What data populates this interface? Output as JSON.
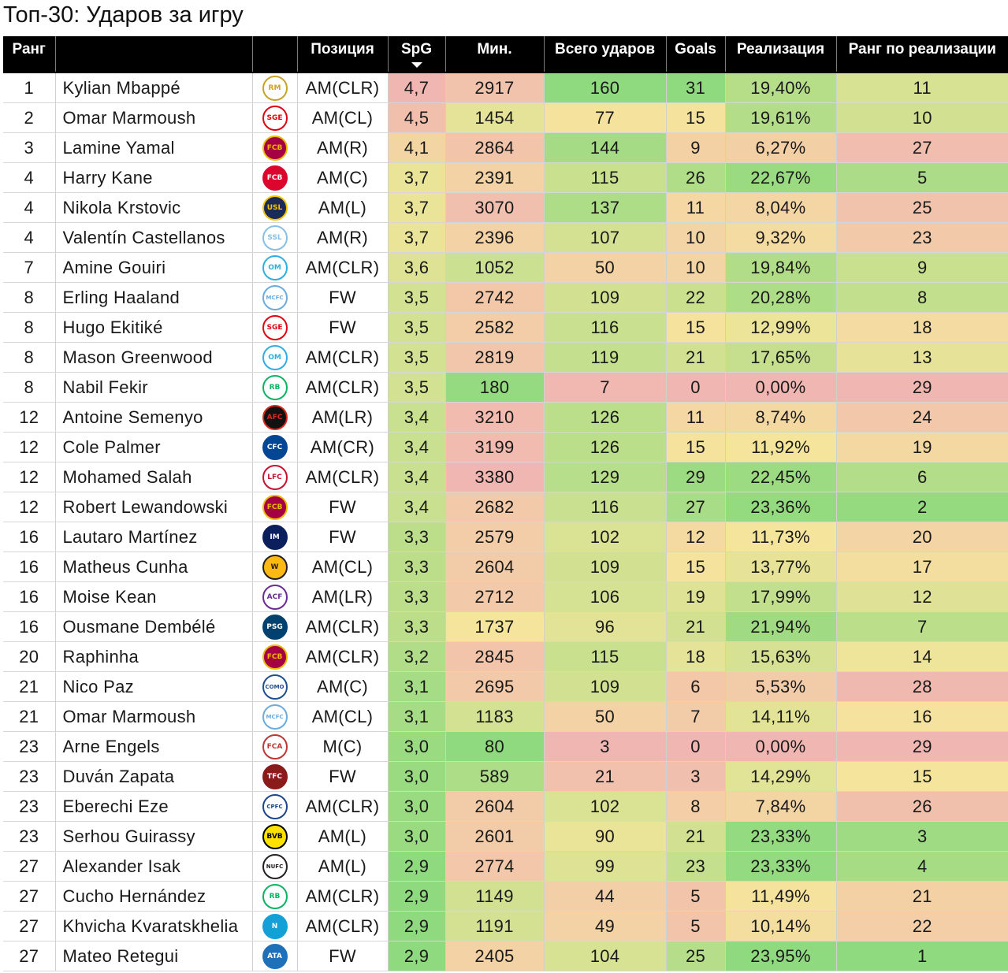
{
  "title": "Топ-30: Ударов за игру",
  "columns": {
    "rank": "Ранг",
    "player": "",
    "club": "",
    "position": "Позиция",
    "spg": "SpG",
    "minutes": "Мин.",
    "shots": "Всего ударов",
    "goals": "Goals",
    "conversion": "Реализация",
    "conversion_rank": "Ранг по реализации"
  },
  "sorted_column": "spg",
  "sort_direction": "descending",
  "rows": [
    {
      "rank": "1",
      "player": "Kylian Mbappé",
      "club_icon": "real-madrid-crest",
      "position": "AM(CLR)",
      "spg": "4,7",
      "minutes": "2917",
      "shots": "160",
      "goals": "31",
      "conversion": "19,40%",
      "conversion_rank": "11"
    },
    {
      "rank": "2",
      "player": "Omar Marmoush",
      "club_icon": "eintracht-frankfurt-crest",
      "position": "AM(CL)",
      "spg": "4,5",
      "minutes": "1454",
      "shots": "77",
      "goals": "15",
      "conversion": "19,61%",
      "conversion_rank": "10"
    },
    {
      "rank": "3",
      "player": "Lamine Yamal",
      "club_icon": "barcelona-crest",
      "position": "AM(R)",
      "spg": "4,1",
      "minutes": "2864",
      "shots": "144",
      "goals": "9",
      "conversion": "6,27%",
      "conversion_rank": "27"
    },
    {
      "rank": "4",
      "player": "Harry Kane",
      "club_icon": "bayern-munich-crest",
      "position": "AM(C)",
      "spg": "3,7",
      "minutes": "2391",
      "shots": "115",
      "goals": "26",
      "conversion": "22,67%",
      "conversion_rank": "5"
    },
    {
      "rank": "4",
      "player": "Nikola Krstovic",
      "club_icon": "lecce-crest",
      "position": "AM(L)",
      "spg": "3,7",
      "minutes": "3070",
      "shots": "137",
      "goals": "11",
      "conversion": "8,04%",
      "conversion_rank": "25"
    },
    {
      "rank": "4",
      "player": "Valentín Castellanos",
      "club_icon": "lazio-crest",
      "position": "AM(R)",
      "spg": "3,7",
      "minutes": "2396",
      "shots": "107",
      "goals": "10",
      "conversion": "9,32%",
      "conversion_rank": "23"
    },
    {
      "rank": "7",
      "player": "Amine Gouiri",
      "club_icon": "marseille-crest",
      "position": "AM(CLR)",
      "spg": "3,6",
      "minutes": "1052",
      "shots": "50",
      "goals": "10",
      "conversion": "19,84%",
      "conversion_rank": "9"
    },
    {
      "rank": "8",
      "player": "Erling Haaland",
      "club_icon": "manchester-city-crest",
      "position": "FW",
      "spg": "3,5",
      "minutes": "2742",
      "shots": "109",
      "goals": "22",
      "conversion": "20,28%",
      "conversion_rank": "8"
    },
    {
      "rank": "8",
      "player": "Hugo Ekitiké",
      "club_icon": "eintracht-frankfurt-crest",
      "position": "FW",
      "spg": "3,5",
      "minutes": "2582",
      "shots": "116",
      "goals": "15",
      "conversion": "12,99%",
      "conversion_rank": "18"
    },
    {
      "rank": "8",
      "player": "Mason Greenwood",
      "club_icon": "marseille-crest",
      "position": "AM(CLR)",
      "spg": "3,5",
      "minutes": "2819",
      "shots": "119",
      "goals": "21",
      "conversion": "17,65%",
      "conversion_rank": "13"
    },
    {
      "rank": "8",
      "player": "Nabil Fekir",
      "club_icon": "real-betis-crest",
      "position": "AM(CLR)",
      "spg": "3,5",
      "minutes": "180",
      "shots": "7",
      "goals": "0",
      "conversion": "0,00%",
      "conversion_rank": "29"
    },
    {
      "rank": "12",
      "player": "Antoine Semenyo",
      "club_icon": "bournemouth-crest",
      "position": "AM(LR)",
      "spg": "3,4",
      "minutes": "3210",
      "shots": "126",
      "goals": "11",
      "conversion": "8,74%",
      "conversion_rank": "24"
    },
    {
      "rank": "12",
      "player": "Cole Palmer",
      "club_icon": "chelsea-crest",
      "position": "AM(CR)",
      "spg": "3,4",
      "minutes": "3199",
      "shots": "126",
      "goals": "15",
      "conversion": "11,92%",
      "conversion_rank": "19"
    },
    {
      "rank": "12",
      "player": "Mohamed Salah",
      "club_icon": "liverpool-crest",
      "position": "AM(CLR)",
      "spg": "3,4",
      "minutes": "3380",
      "shots": "129",
      "goals": "29",
      "conversion": "22,45%",
      "conversion_rank": "6"
    },
    {
      "rank": "12",
      "player": "Robert Lewandowski",
      "club_icon": "barcelona-crest",
      "position": "FW",
      "spg": "3,4",
      "minutes": "2682",
      "shots": "116",
      "goals": "27",
      "conversion": "23,36%",
      "conversion_rank": "2"
    },
    {
      "rank": "16",
      "player": "Lautaro Martínez",
      "club_icon": "inter-crest",
      "position": "FW",
      "spg": "3,3",
      "minutes": "2579",
      "shots": "102",
      "goals": "12",
      "conversion": "11,73%",
      "conversion_rank": "20"
    },
    {
      "rank": "16",
      "player": "Matheus Cunha",
      "club_icon": "wolves-crest",
      "position": "AM(CL)",
      "spg": "3,3",
      "minutes": "2604",
      "shots": "109",
      "goals": "15",
      "conversion": "13,77%",
      "conversion_rank": "17"
    },
    {
      "rank": "16",
      "player": "Moise Kean",
      "club_icon": "fiorentina-crest",
      "position": "AM(LR)",
      "spg": "3,3",
      "minutes": "2712",
      "shots": "106",
      "goals": "19",
      "conversion": "17,99%",
      "conversion_rank": "12"
    },
    {
      "rank": "16",
      "player": "Ousmane Dembélé",
      "club_icon": "psg-crest",
      "position": "AM(CLR)",
      "spg": "3,3",
      "minutes": "1737",
      "shots": "96",
      "goals": "21",
      "conversion": "21,94%",
      "conversion_rank": "7"
    },
    {
      "rank": "20",
      "player": "Raphinha",
      "club_icon": "barcelona-crest",
      "position": "AM(CLR)",
      "spg": "3,2",
      "minutes": "2845",
      "shots": "115",
      "goals": "18",
      "conversion": "15,63%",
      "conversion_rank": "14"
    },
    {
      "rank": "21",
      "player": "Nico Paz",
      "club_icon": "como-crest",
      "position": "AM(C)",
      "spg": "3,1",
      "minutes": "2695",
      "shots": "109",
      "goals": "6",
      "conversion": "5,53%",
      "conversion_rank": "28"
    },
    {
      "rank": "21",
      "player": "Omar Marmoush",
      "club_icon": "manchester-city-crest",
      "position": "AM(CL)",
      "spg": "3,1",
      "minutes": "1183",
      "shots": "50",
      "goals": "7",
      "conversion": "14,11%",
      "conversion_rank": "16"
    },
    {
      "rank": "23",
      "player": "Arne Engels",
      "club_icon": "augsburg-crest",
      "position": "M(C)",
      "spg": "3,0",
      "minutes": "80",
      "shots": "3",
      "goals": "0",
      "conversion": "0,00%",
      "conversion_rank": "29"
    },
    {
      "rank": "23",
      "player": "Duván Zapata",
      "club_icon": "torino-crest",
      "position": "FW",
      "spg": "3,0",
      "minutes": "589",
      "shots": "21",
      "goals": "3",
      "conversion": "14,29%",
      "conversion_rank": "15"
    },
    {
      "rank": "23",
      "player": "Eberechi Eze",
      "club_icon": "crystal-palace-crest",
      "position": "AM(CLR)",
      "spg": "3,0",
      "minutes": "2604",
      "shots": "102",
      "goals": "8",
      "conversion": "7,84%",
      "conversion_rank": "26"
    },
    {
      "rank": "23",
      "player": "Serhou Guirassy",
      "club_icon": "dortmund-crest",
      "position": "AM(L)",
      "spg": "3,0",
      "minutes": "2601",
      "shots": "90",
      "goals": "21",
      "conversion": "23,33%",
      "conversion_rank": "3"
    },
    {
      "rank": "27",
      "player": "Alexander Isak",
      "club_icon": "newcastle-crest",
      "position": "AM(L)",
      "spg": "2,9",
      "minutes": "2774",
      "shots": "99",
      "goals": "23",
      "conversion": "23,33%",
      "conversion_rank": "4"
    },
    {
      "rank": "27",
      "player": "Cucho Hernández",
      "club_icon": "real-betis-crest",
      "position": "AM(CLR)",
      "spg": "2,9",
      "minutes": "1149",
      "shots": "44",
      "goals": "5",
      "conversion": "11,49%",
      "conversion_rank": "21"
    },
    {
      "rank": "27",
      "player": "Khvicha Kvaratskhelia",
      "club_icon": "napoli-crest",
      "position": "AM(CLR)",
      "spg": "2,9",
      "minutes": "1191",
      "shots": "49",
      "goals": "5",
      "conversion": "10,14%",
      "conversion_rank": "22"
    },
    {
      "rank": "27",
      "player": "Mateo Retegui",
      "club_icon": "atalanta-crest",
      "position": "FW",
      "spg": "2,9",
      "minutes": "2405",
      "shots": "104",
      "goals": "25",
      "conversion": "23,95%",
      "conversion_rank": "1"
    }
  ],
  "heat_colors": {
    "low": "#f0b6b2",
    "mid": "#f5e59c",
    "high": "#8fd97e"
  },
  "club_colors": {
    "real-madrid-crest": {
      "bg": "#ffffff",
      "fg": "#c9a227",
      "tag": "RM"
    },
    "eintracht-frankfurt-crest": {
      "bg": "#ffffff",
      "fg": "#e1000f",
      "tag": "SGE"
    },
    "barcelona-crest": {
      "bg": "#a50044",
      "fg": "#edbb00",
      "tag": "FCB"
    },
    "bayern-munich-crest": {
      "bg": "#dc052d",
      "fg": "#ffffff",
      "tag": "FCB"
    },
    "lecce-crest": {
      "bg": "#1b2a57",
      "fg": "#f5c400",
      "tag": "USL"
    },
    "lazio-crest": {
      "bg": "#ffffff",
      "fg": "#87bfe6",
      "tag": "SSL"
    },
    "marseille-crest": {
      "bg": "#ffffff",
      "fg": "#2faee0",
      "tag": "OM"
    },
    "manchester-city-crest": {
      "bg": "#ffffff",
      "fg": "#6cabdd",
      "tag": "MCFC"
    },
    "real-betis-crest": {
      "bg": "#ffffff",
      "fg": "#0bb363",
      "tag": "RB"
    },
    "bournemouth-crest": {
      "bg": "#111111",
      "fg": "#da291c",
      "tag": "AFC"
    },
    "chelsea-crest": {
      "bg": "#034694",
      "fg": "#ffffff",
      "tag": "CFC"
    },
    "liverpool-crest": {
      "bg": "#ffffff",
      "fg": "#c8102e",
      "tag": "LFC"
    },
    "inter-crest": {
      "bg": "#0a1f5c",
      "fg": "#ffffff",
      "tag": "IM"
    },
    "wolves-crest": {
      "bg": "#fdb913",
      "fg": "#231f20",
      "tag": "W"
    },
    "fiorentina-crest": {
      "bg": "#ffffff",
      "fg": "#6a2c91",
      "tag": "ACF"
    },
    "psg-crest": {
      "bg": "#004170",
      "fg": "#ffffff",
      "tag": "PSG"
    },
    "como-crest": {
      "bg": "#ffffff",
      "fg": "#1d4f91",
      "tag": "COMO"
    },
    "augsburg-crest": {
      "bg": "#ffffff",
      "fg": "#ba3733",
      "tag": "FCA"
    },
    "torino-crest": {
      "bg": "#8b1a1a",
      "fg": "#ffffff",
      "tag": "TFC"
    },
    "crystal-palace-crest": {
      "bg": "#ffffff",
      "fg": "#1b458f",
      "tag": "CPFC"
    },
    "dortmund-crest": {
      "bg": "#fde100",
      "fg": "#000000",
      "tag": "BVB"
    },
    "newcastle-crest": {
      "bg": "#ffffff",
      "fg": "#241f20",
      "tag": "NUFC"
    },
    "napoli-crest": {
      "bg": "#12a0d7",
      "fg": "#ffffff",
      "tag": "N"
    },
    "atalanta-crest": {
      "bg": "#1e71b8",
      "fg": "#ffffff",
      "tag": "ATA"
    }
  }
}
